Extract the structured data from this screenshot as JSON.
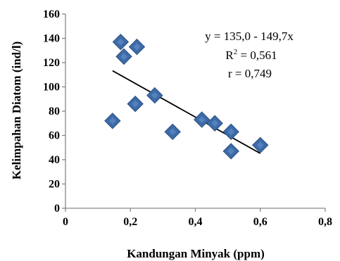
{
  "chart_data": {
    "type": "scatter",
    "xlabel": "Kandungan Minyak (ppm)",
    "ylabel": "Kelimpahan Diatom (ind/l)",
    "xlim": [
      0,
      0.8
    ],
    "ylim": [
      0,
      160
    ],
    "x_ticks": [
      0,
      0.2,
      0.4,
      0.6,
      0.8
    ],
    "x_tick_labels": [
      "0",
      "0,2",
      "0,4",
      "0,6",
      "0,8"
    ],
    "y_ticks": [
      0,
      20,
      40,
      60,
      80,
      100,
      120,
      140,
      160
    ],
    "y_tick_labels": [
      "0",
      "20",
      "40",
      "60",
      "80",
      "100",
      "120",
      "140",
      "160"
    ],
    "grid": false,
    "marker": "diamond",
    "marker_color": "#3d6ba8",
    "series": [
      {
        "points": [
          {
            "x": 0.145,
            "y": 72
          },
          {
            "x": 0.17,
            "y": 137
          },
          {
            "x": 0.18,
            "y": 125
          },
          {
            "x": 0.215,
            "y": 86
          },
          {
            "x": 0.22,
            "y": 133
          },
          {
            "x": 0.275,
            "y": 93
          },
          {
            "x": 0.33,
            "y": 63
          },
          {
            "x": 0.42,
            "y": 73
          },
          {
            "x": 0.46,
            "y": 70
          },
          {
            "x": 0.51,
            "y": 63
          },
          {
            "x": 0.51,
            "y": 47
          },
          {
            "x": 0.6,
            "y": 52
          }
        ]
      }
    ],
    "trendline": {
      "x_start": 0.145,
      "x_end": 0.6,
      "y_start": 113.3,
      "y_end": 45.2,
      "color": "#000000"
    },
    "annotations": {
      "equation": "y = 135,0 - 149,7x",
      "r2_prefix": "R",
      "r2_sup": "2",
      "r2_suffix": " = 0,561",
      "r": "r = 0,749"
    }
  }
}
